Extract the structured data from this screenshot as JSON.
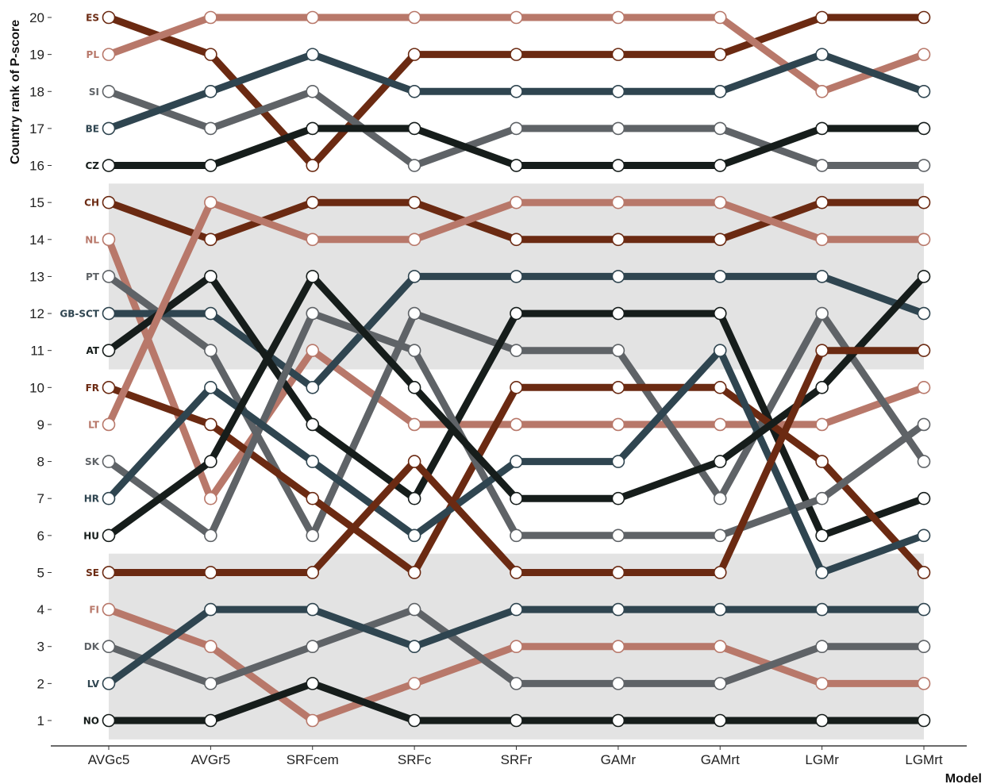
{
  "chart_data": {
    "type": "line",
    "subtype": "bump",
    "xlabel": "Model",
    "ylabel": "Country rank of P-score",
    "x": [
      "AVGc5",
      "AVGr5",
      "SRFcem",
      "SRFc",
      "SRFr",
      "GAMr",
      "GAMrt",
      "LGMr",
      "LGMrt"
    ],
    "ylim": [
      1,
      20
    ],
    "y_ticks": [
      1,
      2,
      3,
      4,
      5,
      6,
      7,
      8,
      9,
      10,
      11,
      12,
      13,
      14,
      15,
      16,
      17,
      18,
      19,
      20
    ],
    "shaded_bands": [
      [
        1,
        5
      ],
      [
        11,
        15
      ]
    ],
    "grid": false,
    "legend": "none (country codes labelled at left, colored per series)",
    "series": [
      {
        "name": "ES",
        "color": "#6b2a12",
        "values": [
          20,
          19,
          16,
          19,
          19,
          19,
          19,
          20,
          20
        ]
      },
      {
        "name": "PL",
        "color": "#b8786a",
        "values": [
          19,
          20,
          20,
          20,
          20,
          20,
          20,
          18,
          19
        ]
      },
      {
        "name": "SI",
        "color": "#5f6367",
        "values": [
          18,
          17,
          18,
          16,
          17,
          17,
          17,
          16,
          16
        ]
      },
      {
        "name": "BE",
        "color": "#2f4550",
        "values": [
          17,
          18,
          19,
          18,
          18,
          18,
          18,
          19,
          18
        ]
      },
      {
        "name": "CZ",
        "color": "#161d1b",
        "values": [
          16,
          16,
          17,
          17,
          16,
          16,
          16,
          17,
          17
        ]
      },
      {
        "name": "CH",
        "color": "#6b2a12",
        "values": [
          15,
          14,
          15,
          15,
          14,
          14,
          14,
          15,
          15
        ]
      },
      {
        "name": "NL",
        "color": "#b8786a",
        "values": [
          14,
          7,
          11,
          9,
          9,
          9,
          9,
          9,
          10
        ]
      },
      {
        "name": "PT",
        "color": "#5f6367",
        "values": [
          13,
          11,
          6,
          12,
          11,
          11,
          7,
          12,
          8
        ]
      },
      {
        "name": "GB-SCT",
        "color": "#2f4550",
        "values": [
          12,
          12,
          10,
          13,
          13,
          13,
          13,
          13,
          12
        ]
      },
      {
        "name": "AT",
        "color": "#161d1b",
        "values": [
          11,
          13,
          9,
          7,
          12,
          12,
          12,
          6,
          7
        ]
      },
      {
        "name": "FR",
        "color": "#6b2a12",
        "values": [
          10,
          9,
          7,
          5,
          10,
          10,
          10,
          8,
          5
        ]
      },
      {
        "name": "LT",
        "color": "#b8786a",
        "values": [
          9,
          15,
          14,
          14,
          15,
          15,
          15,
          14,
          14
        ]
      },
      {
        "name": "SK",
        "color": "#5f6367",
        "values": [
          8,
          6,
          12,
          11,
          6,
          6,
          6,
          7,
          9
        ]
      },
      {
        "name": "HR",
        "color": "#2f4550",
        "values": [
          7,
          10,
          8,
          6,
          8,
          8,
          11,
          5,
          6
        ]
      },
      {
        "name": "HU",
        "color": "#161d1b",
        "values": [
          6,
          8,
          13,
          10,
          7,
          7,
          8,
          10,
          13
        ]
      },
      {
        "name": "SE",
        "color": "#6b2a12",
        "values": [
          5,
          5,
          5,
          8,
          5,
          5,
          5,
          11,
          11
        ]
      },
      {
        "name": "FI",
        "color": "#b8786a",
        "values": [
          4,
          3,
          1,
          2,
          3,
          3,
          3,
          2,
          2
        ]
      },
      {
        "name": "DK",
        "color": "#5f6367",
        "values": [
          3,
          2,
          3,
          4,
          2,
          2,
          2,
          3,
          3
        ]
      },
      {
        "name": "LV",
        "color": "#2f4550",
        "values": [
          2,
          4,
          4,
          3,
          4,
          4,
          4,
          4,
          4
        ]
      },
      {
        "name": "NO",
        "color": "#161d1b",
        "values": [
          1,
          1,
          2,
          1,
          1,
          1,
          1,
          1,
          1
        ]
      }
    ]
  }
}
